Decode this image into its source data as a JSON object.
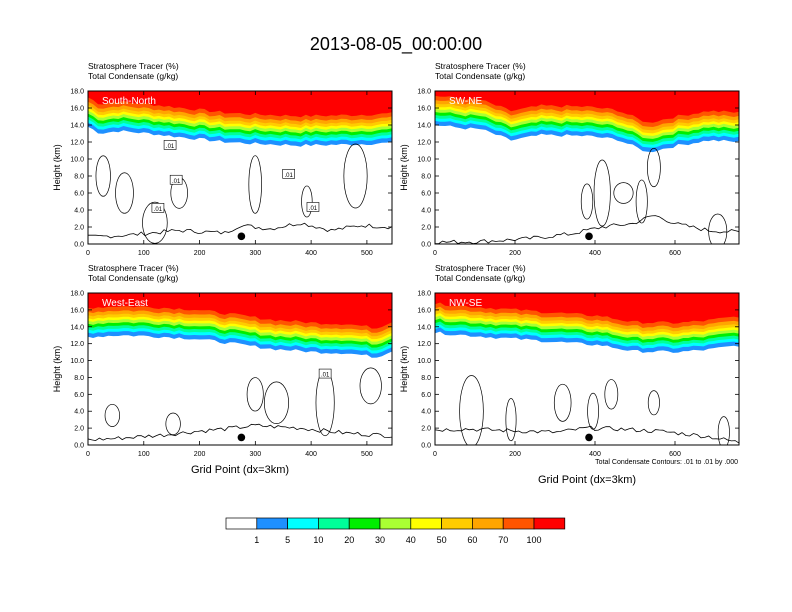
{
  "title": "2013-08-05_00:00:00",
  "panel_header": {
    "line1": "Stratosphere Tracer   (%)",
    "line2": "Total Condensate   (g/kg)"
  },
  "ylabel": "Height (km)",
  "xlabel": "Grid Point (dx=3km)",
  "contour_note": "Total Condensate Contours: .01 to .01 by .000",
  "colorbar": {
    "levels": [
      "1",
      "5",
      "10",
      "20",
      "30",
      "40",
      "50",
      "60",
      "70",
      "100"
    ],
    "colors": [
      "#ffffff",
      "#1e90ff",
      "#00ffff",
      "#00ff99",
      "#00ee00",
      "#aaff33",
      "#ffff00",
      "#ffcc00",
      "#ffa500",
      "#ff5500",
      "#ff0000"
    ]
  },
  "chart_data": [
    {
      "type": "contour",
      "name": "South-North",
      "xlim": [
        0,
        545
      ],
      "ylim": [
        0,
        18
      ],
      "xticks": [
        0,
        100,
        200,
        300,
        400,
        500
      ],
      "yticks": [
        "0.0",
        "2.0",
        "4.0",
        "6.0",
        "8.0",
        "10.0",
        "12.0",
        "14.0",
        "16.0",
        "18.0"
      ],
      "terrain_peak_grid_point": 275,
      "contour_labels": [
        ".01",
        ".01",
        ".01",
        ".01",
        ".01"
      ]
    },
    {
      "type": "contour",
      "name": "SW-NE",
      "xlim": [
        0,
        760
      ],
      "ylim": [
        0,
        18
      ],
      "xticks": [
        0,
        200,
        400,
        600
      ],
      "yticks": [
        "0.0",
        "2.0",
        "4.0",
        "6.0",
        "8.0",
        "10.0",
        "12.0",
        "14.0",
        "16.0",
        "18.0"
      ],
      "terrain_peak_grid_point": 385,
      "contour_labels": []
    },
    {
      "type": "contour",
      "name": "West-East",
      "xlim": [
        0,
        545
      ],
      "ylim": [
        0,
        18
      ],
      "xticks": [
        0,
        100,
        200,
        300,
        400,
        500
      ],
      "yticks": [
        "0.0",
        "2.0",
        "4.0",
        "6.0",
        "8.0",
        "10.0",
        "12.0",
        "14.0",
        "16.0",
        "18.0"
      ],
      "terrain_peak_grid_point": 275,
      "contour_labels": [
        ".01"
      ]
    },
    {
      "type": "contour",
      "name": "NW-SE",
      "xlim": [
        0,
        760
      ],
      "ylim": [
        0,
        18
      ],
      "xticks": [
        0,
        200,
        400,
        600
      ],
      "yticks": [
        "0.0",
        "2.0",
        "4.0",
        "6.0",
        "8.0",
        "10.0",
        "12.0",
        "14.0",
        "16.0",
        "18.0"
      ],
      "terrain_peak_grid_point": 385,
      "contour_labels": []
    }
  ]
}
